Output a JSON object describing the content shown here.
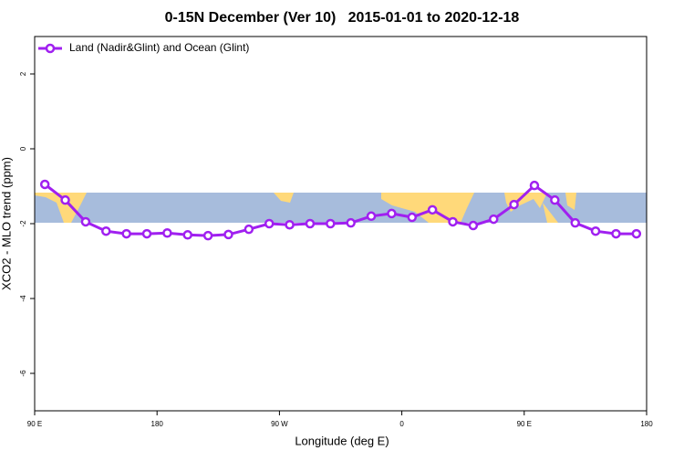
{
  "chart_data": {
    "type": "line",
    "title": "0-15N December (Ver 10)   2015-01-01 to 2020-12-18",
    "xlabel": "Longitude (deg E)",
    "ylabel": "XCO2 - MLO trend (ppm)",
    "x": [
      97.5,
      112.5,
      127.5,
      142.5,
      157.5,
      172.5,
      187.5,
      202.5,
      217.5,
      232.5,
      247.5,
      262.5,
      277.5,
      292.5,
      307.5,
      322.5,
      337.5,
      352.5,
      367.5,
      382.5,
      397.5,
      412.5,
      427.5,
      442.5,
      457.5,
      472.5,
      487.5,
      502.5,
      517.5,
      532.5
    ],
    "series": [
      {
        "name": "Land (Nadir&Glint) and Ocean (Glint)",
        "color": "#a020f0",
        "values": [
          -0.95,
          -1.37,
          -1.95,
          -2.2,
          -2.27,
          -2.27,
          -2.25,
          -2.3,
          -2.32,
          -2.29,
          -2.15,
          -2.0,
          -2.03,
          -2.0,
          -2.0,
          -1.98,
          -1.8,
          -1.73,
          -1.83,
          -1.63,
          -1.95,
          -2.05,
          -1.88,
          -1.49,
          -0.98,
          -1.37,
          -1.98,
          -2.2,
          -2.27,
          -2.27
        ]
      }
    ],
    "xlim": [
      90,
      540
    ],
    "xticks": [
      {
        "value": 90,
        "label": "90 E"
      },
      180,
      {
        "value": 270,
        "label": "90 W"
      },
      {
        "value": 360,
        "label": "0"
      },
      {
        "value": 450,
        "label": "90 E"
      },
      {
        "value": 540,
        "label": "180"
      }
    ],
    "ylim": [
      -7,
      3
    ],
    "yticks": [
      2,
      0,
      -2,
      -4,
      -6
    ],
    "legend": "top-left"
  }
}
